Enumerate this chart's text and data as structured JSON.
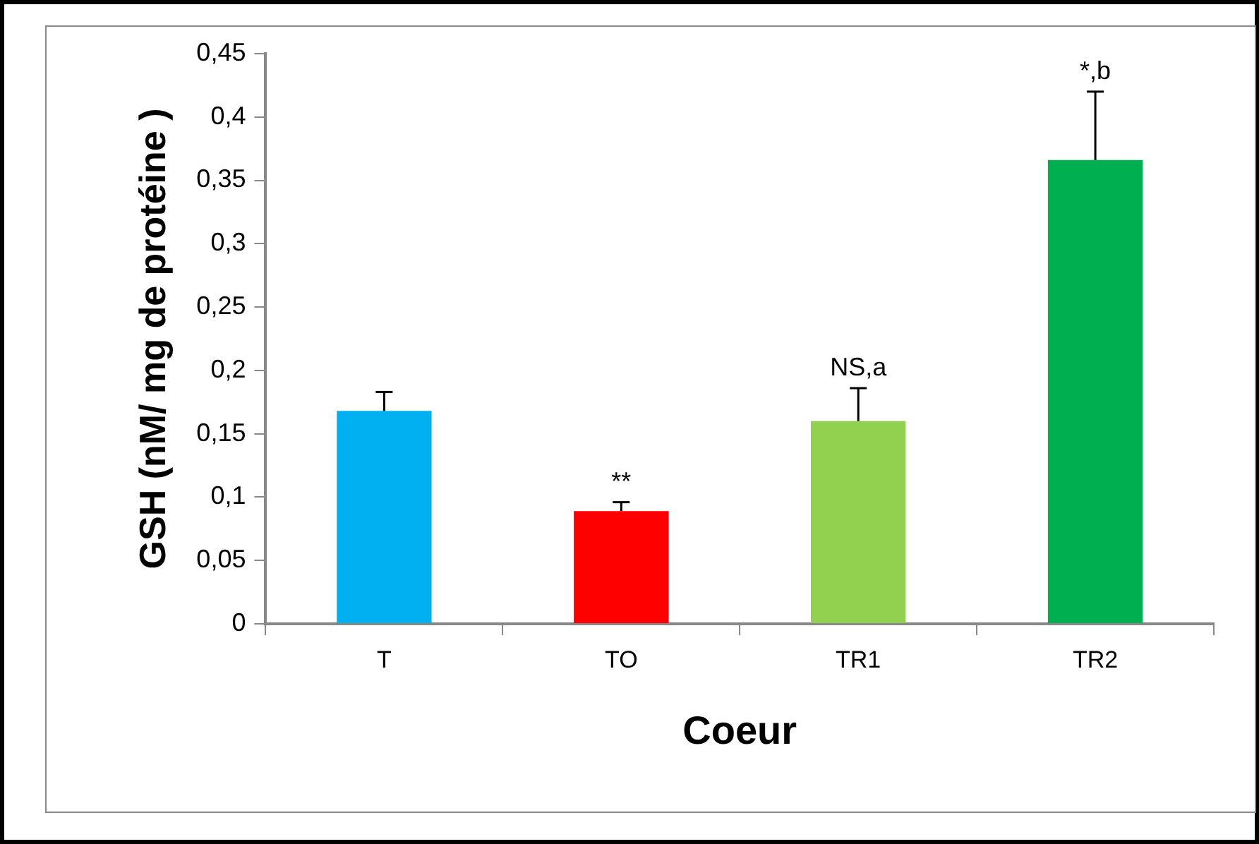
{
  "chart_data": {
    "type": "bar",
    "xlabel": "Coeur",
    "ylabel": "GSH (nM/ mg de protéine )",
    "categories": [
      "T",
      "TO",
      "TR1",
      "TR2"
    ],
    "values": [
      0.168,
      0.089,
      0.16,
      0.366
    ],
    "colors": [
      "#00b0f0",
      "#ff0000",
      "#92d050",
      "#00b050"
    ],
    "errors": [
      [
        0.168,
        0.183
      ],
      [
        0.089,
        0.096
      ],
      [
        0.16,
        0.186
      ],
      [
        0.366,
        0.42
      ]
    ],
    "ylim": [
      0,
      0.45
    ],
    "yticks": [
      {
        "value": 0,
        "label": "0"
      },
      {
        "value": 0.05,
        "label": "0,05"
      },
      {
        "value": 0.1,
        "label": "0,1"
      },
      {
        "value": 0.15,
        "label": "0,15"
      },
      {
        "value": 0.2,
        "label": "0,2"
      },
      {
        "value": 0.25,
        "label": "0,25"
      },
      {
        "value": 0.3,
        "label": "0,3"
      },
      {
        "value": 0.35,
        "label": "0,35"
      },
      {
        "value": 0.4,
        "label": "0,4"
      },
      {
        "value": 0.45,
        "label": "0,45"
      }
    ],
    "grid": false,
    "value_labels": [
      null,
      "**",
      "NS,a",
      "*,b"
    ]
  }
}
